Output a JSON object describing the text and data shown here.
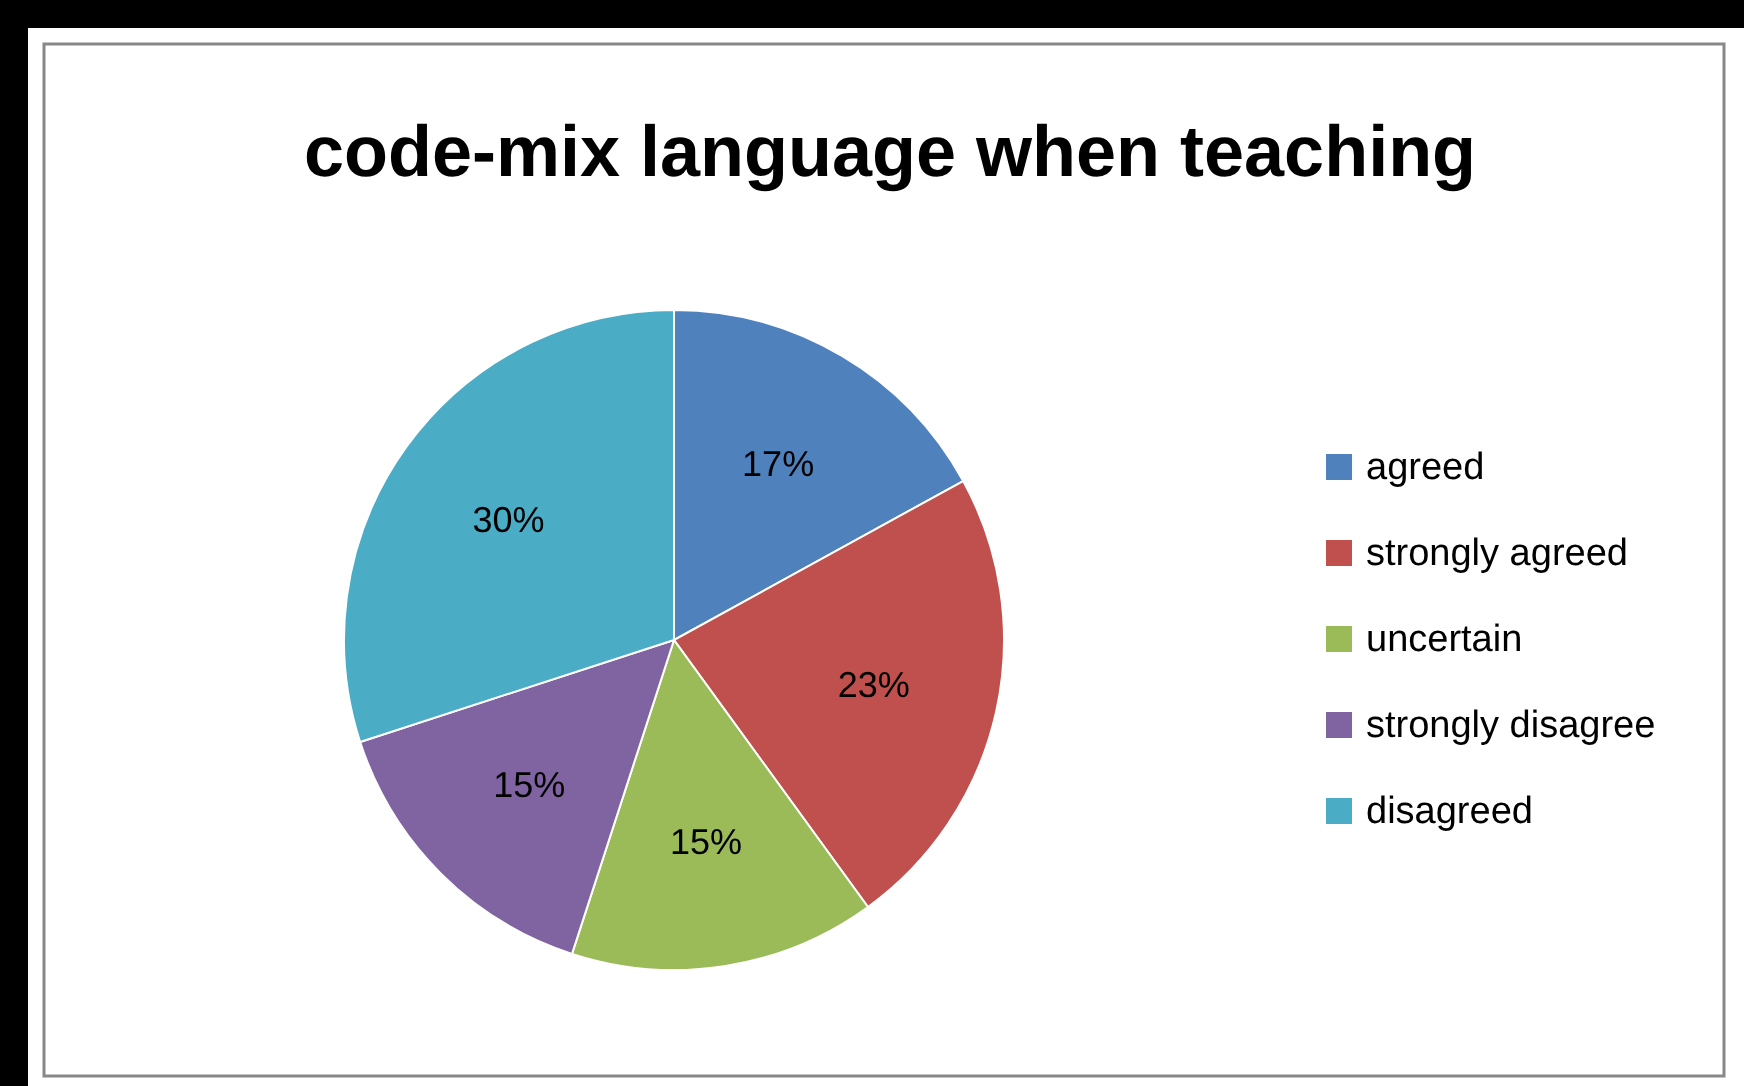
{
  "chart_data": {
    "type": "pie",
    "title": "code-mix language when teaching",
    "categories": [
      "agreed",
      "strongly agreed",
      "uncertain",
      "strongly disagree",
      "disagreed"
    ],
    "values": [
      17,
      23,
      15,
      15,
      30
    ],
    "value_labels": [
      "17%",
      "23%",
      "15%",
      "15%",
      "30%"
    ],
    "colors": [
      "#4f81bd",
      "#c0504d",
      "#9bbb59",
      "#8064a2",
      "#4bacc6"
    ],
    "legend": "right"
  }
}
